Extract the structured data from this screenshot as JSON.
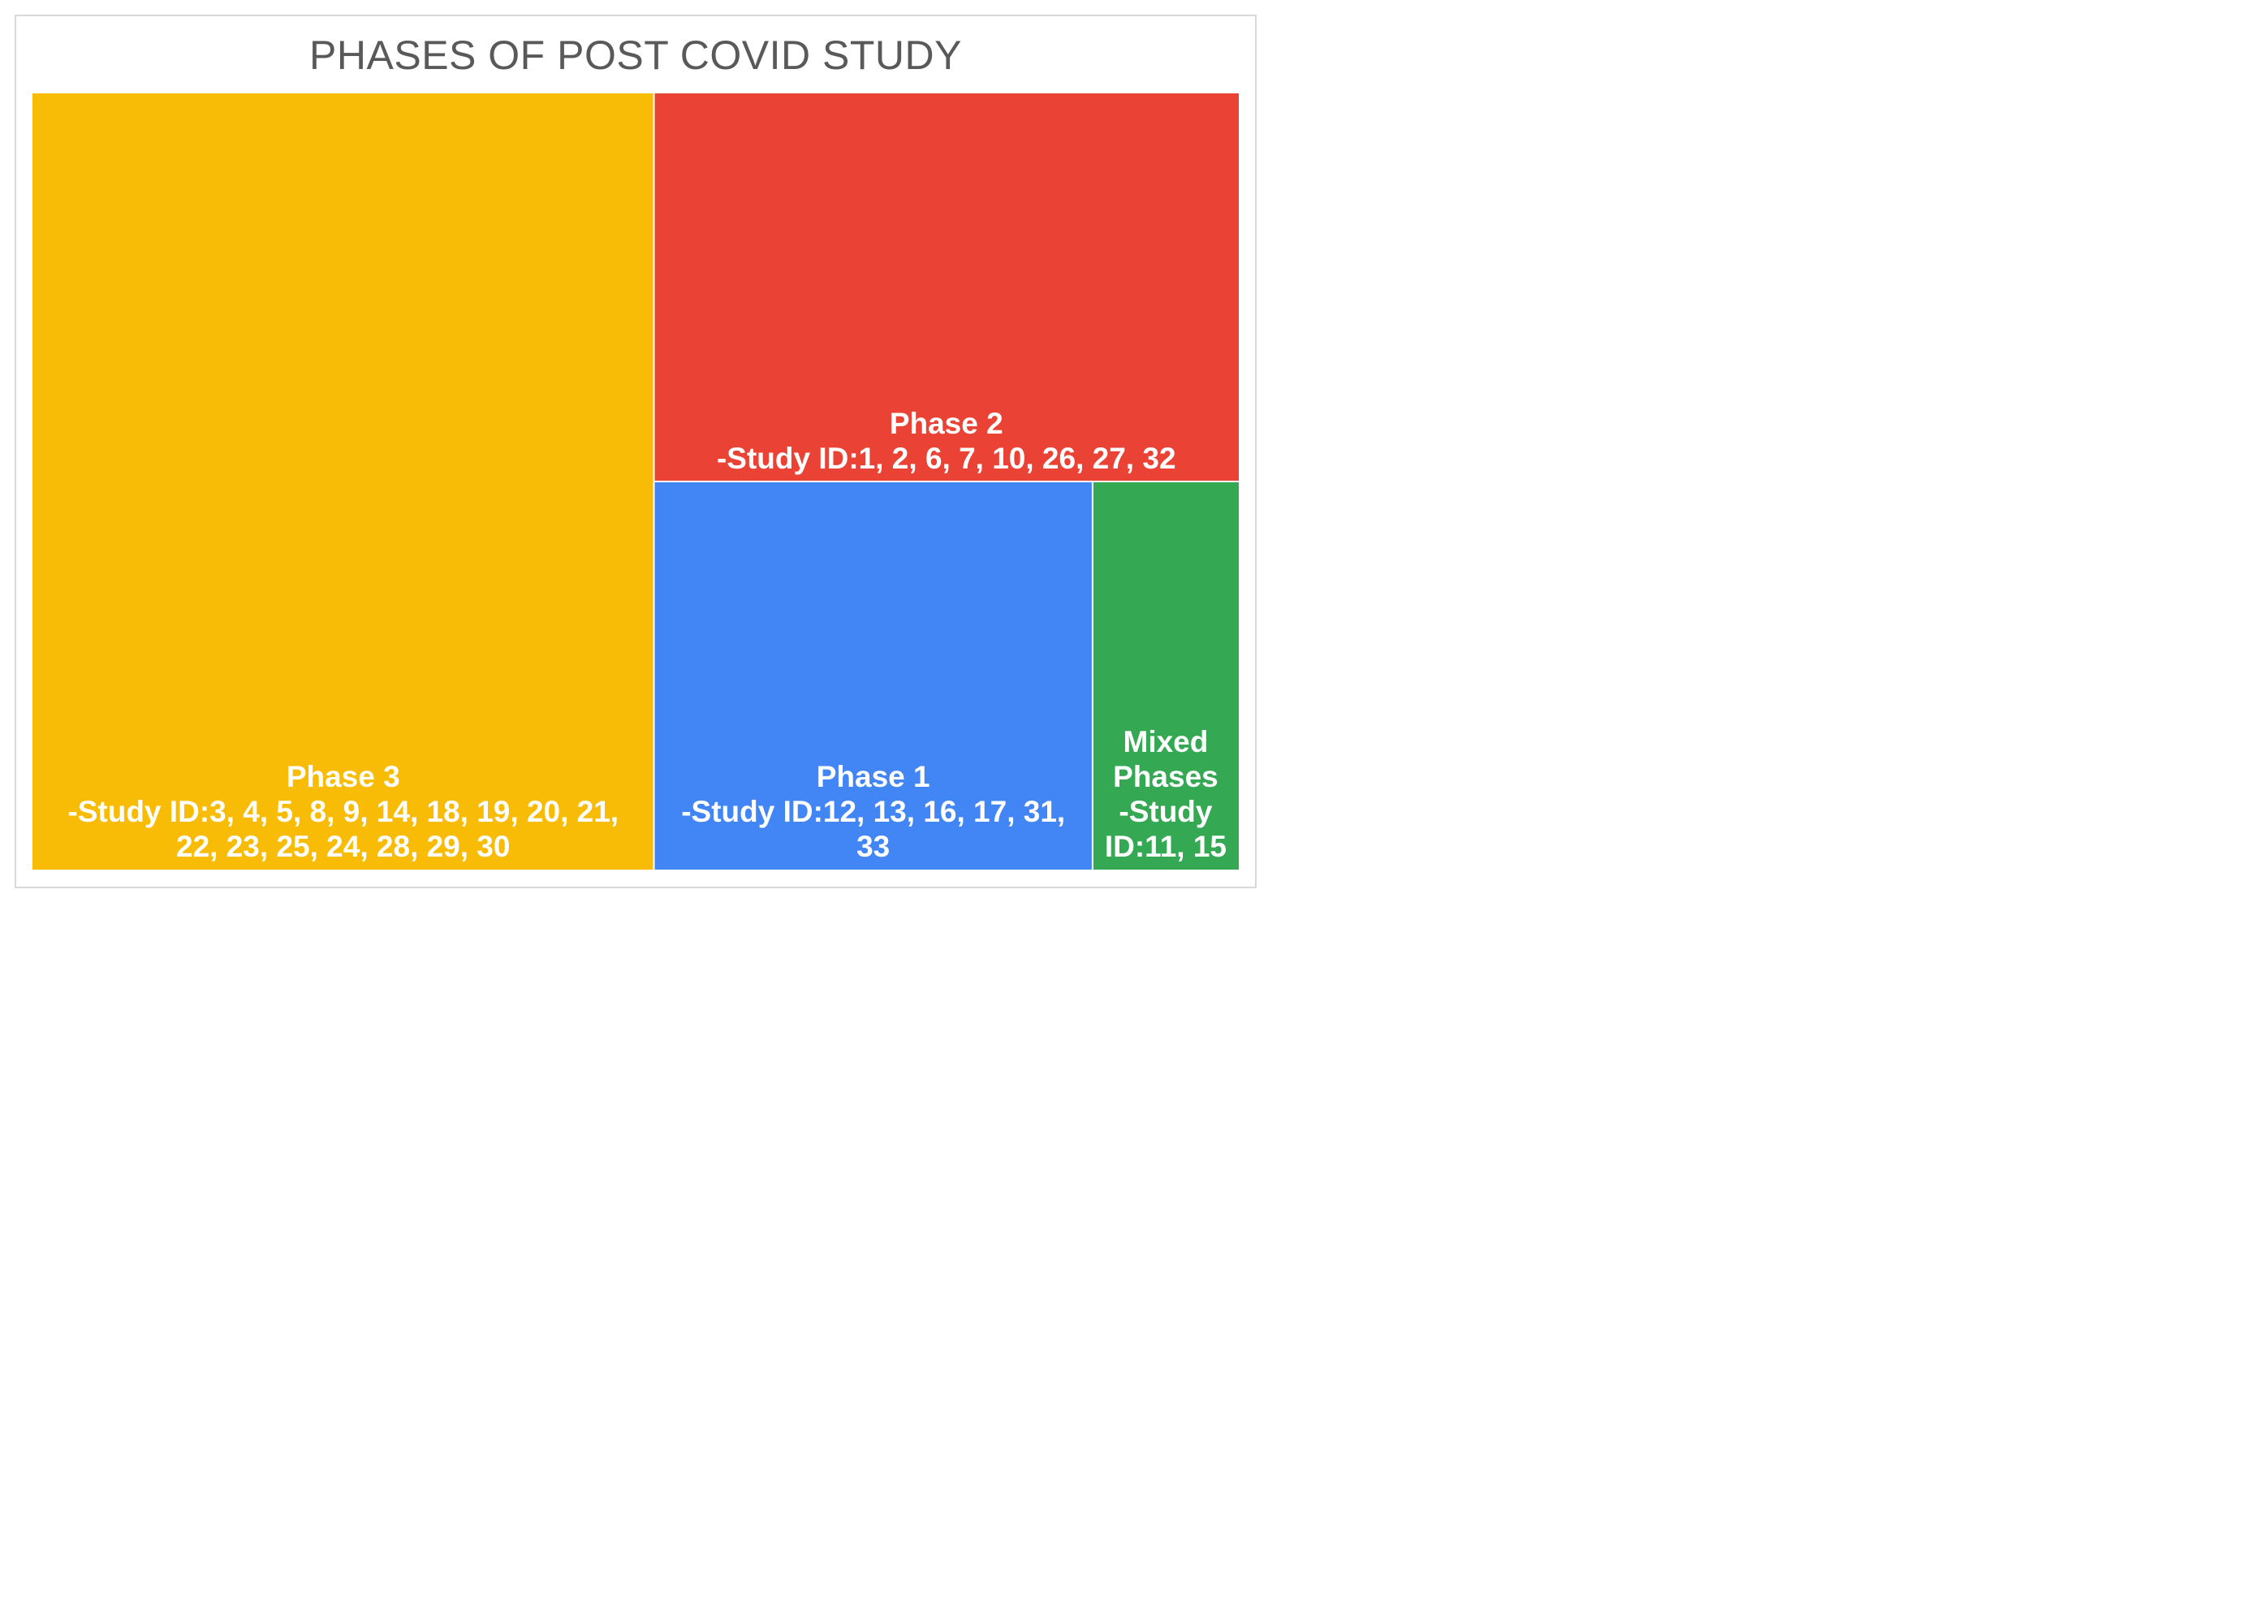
{
  "chart_data": {
    "type": "treemap",
    "title": "PHASES OF POST COVID STUDY",
    "grid": false,
    "legend": "none",
    "tiles": [
      {
        "name": "Phase 3",
        "study_ids": [
          3,
          4,
          5,
          8,
          9,
          14,
          18,
          19,
          20,
          21,
          22,
          23,
          25,
          24,
          28,
          29,
          30
        ],
        "count": 17,
        "color": "#f9bc06",
        "label_lines": [
          "Phase 3",
          "-Study ID:3, 4, 5, 8, 9, 14, 18, 19, 20, 21,",
          "22, 23, 25, 24, 28, 29, 30"
        ]
      },
      {
        "name": "Phase 2",
        "study_ids": [
          1,
          2,
          6,
          7,
          10,
          26,
          27,
          32
        ],
        "count": 8,
        "color": "#ea4335",
        "label_lines": [
          "Phase 2",
          "-Study ID:1, 2, 6, 7, 10, 26, 27, 32"
        ]
      },
      {
        "name": "Phase 1",
        "study_ids": [
          12,
          13,
          16,
          17,
          31,
          33
        ],
        "count": 6,
        "color": "#4285f4",
        "label_lines": [
          "Phase 1",
          "-Study ID:12, 13, 16, 17, 31,",
          "33"
        ]
      },
      {
        "name": "Mixed Phases",
        "study_ids": [
          11,
          15
        ],
        "count": 2,
        "color": "#34a853",
        "label_lines": [
          "Mixed",
          "Phases",
          "-Study",
          "ID:11, 15"
        ]
      }
    ]
  }
}
